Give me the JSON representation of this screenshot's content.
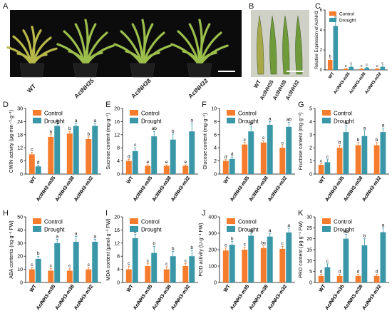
{
  "panel_letters": {
    "A": "A",
    "B": "B",
    "C": "C",
    "D": "D",
    "E": "E",
    "F": "F",
    "G": "G",
    "H": "H",
    "I": "I",
    "J": "J",
    "K": "K"
  },
  "photo_A": {
    "labels": [
      "WT",
      "AcINH35",
      "AcINH38",
      "AcINH32"
    ]
  },
  "photo_B": {
    "labels": [
      "WT",
      "AcINH35",
      "AcINH38",
      "AcINH32"
    ]
  },
  "colors": {
    "control": "#f47c2c",
    "drought": "#3a97a8",
    "photo_bg": "#0c0c0c",
    "leaf": "#9cbf4c",
    "pot": "#1e1e1e"
  },
  "chart_data": [
    {
      "id": "C",
      "type": "bar",
      "ylabel": "Relative Expression of AcINH3",
      "categories": [
        "WT",
        "AcINH3-m35",
        "AcINH3-m38",
        "AcINH3-m32"
      ],
      "ylim": [
        0,
        6
      ],
      "yticks": [
        0,
        2,
        4,
        6
      ],
      "series": [
        {
          "name": "Control",
          "values": [
            1.0,
            0.1,
            0.1,
            0.1
          ],
          "err": [
            0.1,
            0.05,
            0.05,
            0.05
          ],
          "letters": [
            "b",
            "c",
            "c",
            "c"
          ]
        },
        {
          "name": "Drought",
          "values": [
            4.4,
            0.3,
            0.2,
            0.3
          ],
          "err": [
            0.7,
            0.1,
            0.05,
            0.1
          ],
          "letters": [
            "a",
            "c",
            "c",
            "c"
          ]
        }
      ]
    },
    {
      "id": "D",
      "type": "bar",
      "ylabel": "CWIN activity (μg·min⁻¹·g⁻¹)",
      "categories": [
        "WT",
        "AcINH3-m35",
        "AcINH3-m38",
        "AcINH3-m32"
      ],
      "ylim": [
        0,
        30
      ],
      "yticks": [
        0,
        6,
        12,
        18,
        24,
        30
      ],
      "series": [
        {
          "name": "Control",
          "values": [
            9,
            17,
            18.5,
            16
          ],
          "err": [
            1,
            1,
            1,
            1
          ],
          "letters": [
            "c",
            "b",
            "b",
            "b"
          ]
        },
        {
          "name": "Drought",
          "values": [
            3.5,
            22,
            22,
            22
          ],
          "err": [
            0.6,
            1.2,
            1.2,
            1.2
          ],
          "letters": [
            "d",
            "a",
            "a",
            "a"
          ]
        }
      ]
    },
    {
      "id": "E",
      "type": "bar",
      "ylabel": "Sucrose content (mg·g⁻¹)",
      "categories": [
        "WT",
        "AcINH3-m35",
        "AcINH3-m38",
        "AcINH3-m32"
      ],
      "ylim": [
        0,
        20
      ],
      "yticks": [
        0,
        4,
        8,
        12,
        16,
        20
      ],
      "series": [
        {
          "name": "Control",
          "values": [
            4,
            2.5,
            2.5,
            2.5
          ],
          "err": [
            0.5,
            0.3,
            0.3,
            0.3
          ],
          "letters": [
            "d",
            "e",
            "e",
            "e"
          ]
        },
        {
          "name": "Drought",
          "values": [
            7,
            11.5,
            10.5,
            13
          ],
          "err": [
            1,
            1.5,
            1.7,
            2.5
          ],
          "letters": [
            "c",
            "ab",
            "b",
            "a"
          ]
        }
      ]
    },
    {
      "id": "F",
      "type": "bar",
      "ylabel": "Glucose content (mg·g⁻¹)",
      "categories": [
        "WT",
        "AcINH3-m35",
        "AcINH3-m38",
        "AcINH3-m32"
      ],
      "ylim": [
        0,
        10
      ],
      "yticks": [
        0,
        2,
        4,
        6,
        8,
        10
      ],
      "series": [
        {
          "name": "Control",
          "values": [
            2.0,
            4.5,
            4.8,
            4.0
          ],
          "err": [
            0.2,
            0.3,
            0.3,
            0.3
          ],
          "letters": [
            "d",
            "c",
            "c",
            "c"
          ]
        },
        {
          "name": "Drought",
          "values": [
            2.3,
            6.5,
            7.5,
            7.2
          ],
          "err": [
            0.3,
            0.8,
            0.5,
            0.7
          ],
          "letters": [
            "d",
            "b",
            "a",
            "ab"
          ]
        }
      ]
    },
    {
      "id": "G",
      "type": "bar",
      "ylabel": "Fructose content (mg·g⁻¹)",
      "categories": [
        "WT",
        "AcINH3-m35",
        "AcINH3-m38",
        "AcINH3-m32"
      ],
      "ylim": [
        0,
        5
      ],
      "yticks": [
        0,
        1,
        2,
        3,
        4,
        5
      ],
      "series": [
        {
          "name": "Control",
          "values": [
            0.7,
            2.0,
            2.2,
            2.2
          ],
          "err": [
            0.1,
            0.2,
            0.2,
            0.2
          ],
          "letters": [
            "c",
            "b",
            "b",
            "b"
          ]
        },
        {
          "name": "Drought",
          "values": [
            0.9,
            3.2,
            2.9,
            3.2
          ],
          "err": [
            0.2,
            0.5,
            0.4,
            0.3
          ],
          "letters": [
            "c",
            "a",
            "a",
            "a"
          ]
        }
      ]
    },
    {
      "id": "H",
      "type": "bar",
      "ylabel": "ABA contents (ng·g⁻¹ FW)",
      "categories": [
        "WT",
        "AcINH3-m35",
        "AcINH3-m38",
        "AcINH3-m32"
      ],
      "ylim": [
        0,
        50
      ],
      "yticks": [
        0,
        10,
        20,
        30,
        40,
        50
      ],
      "series": [
        {
          "name": "Control",
          "values": [
            10,
            9,
            9,
            10
          ],
          "err": [
            1.5,
            1.5,
            1.5,
            1.5
          ],
          "letters": [
            "c",
            "c",
            "c",
            "c"
          ]
        },
        {
          "name": "Drought",
          "values": [
            18,
            30,
            31,
            31
          ],
          "err": [
            2,
            3,
            4,
            2
          ],
          "letters": [
            "b",
            "a",
            "a",
            "a"
          ]
        }
      ]
    },
    {
      "id": "I",
      "type": "bar",
      "ylabel": "MDA content (μmol·g⁻¹ FW)",
      "categories": [
        "WT",
        "AcINH3-m35",
        "AcINH3-m38",
        "AcINH3-m32"
      ],
      "ylim": [
        0,
        20
      ],
      "yticks": [
        0,
        4,
        8,
        12,
        16,
        20
      ],
      "series": [
        {
          "name": "Control",
          "values": [
            4,
            5,
            4,
            5
          ],
          "err": [
            1,
            0.8,
            0.8,
            0.8
          ],
          "letters": [
            "c",
            "c",
            "c",
            "c"
          ]
        },
        {
          "name": "Drought",
          "values": [
            13.5,
            9,
            8,
            8
          ],
          "err": [
            1.2,
            2,
            1.5,
            1.8
          ],
          "letters": [
            "a",
            "b",
            "b",
            "b"
          ]
        }
      ]
    },
    {
      "id": "J",
      "type": "bar",
      "ylabel": "POD activity (U·g⁻¹ FW)",
      "categories": [
        "WT",
        "AcINH3-m35",
        "AcINH3-m38",
        "AcINH3-m32"
      ],
      "ylim": [
        0,
        400
      ],
      "yticks": [
        0,
        100,
        200,
        300,
        400
      ],
      "series": [
        {
          "name": "Control",
          "values": [
            195,
            200,
            210,
            205
          ],
          "err": [
            15,
            15,
            15,
            15
          ],
          "letters": [
            "c",
            "c",
            "bc",
            "c"
          ]
        },
        {
          "name": "Drought",
          "values": [
            230,
            285,
            280,
            305
          ],
          "err": [
            20,
            15,
            20,
            25
          ],
          "letters": [
            "b",
            "a",
            "a",
            "a"
          ]
        }
      ]
    },
    {
      "id": "K",
      "type": "bar",
      "ylabel": "PRO content (μg·g⁻¹ FW)",
      "categories": [
        "WT",
        "AcINH3-m35",
        "AcINH3-m38",
        "AcINH3-m32"
      ],
      "ylim": [
        0,
        30
      ],
      "yticks": [
        0,
        5,
        10,
        15,
        20,
        25,
        30
      ],
      "series": [
        {
          "name": "Control",
          "values": [
            3,
            3,
            3,
            3
          ],
          "err": [
            0.8,
            0.8,
            0.8,
            0.8
          ],
          "letters": [
            "d",
            "d",
            "d",
            "d"
          ]
        },
        {
          "name": "Drought",
          "values": [
            7,
            20,
            17,
            23
          ],
          "err": [
            1.5,
            2,
            3,
            2
          ],
          "letters": [
            "c",
            "ab",
            "b",
            "a"
          ]
        }
      ]
    }
  ]
}
